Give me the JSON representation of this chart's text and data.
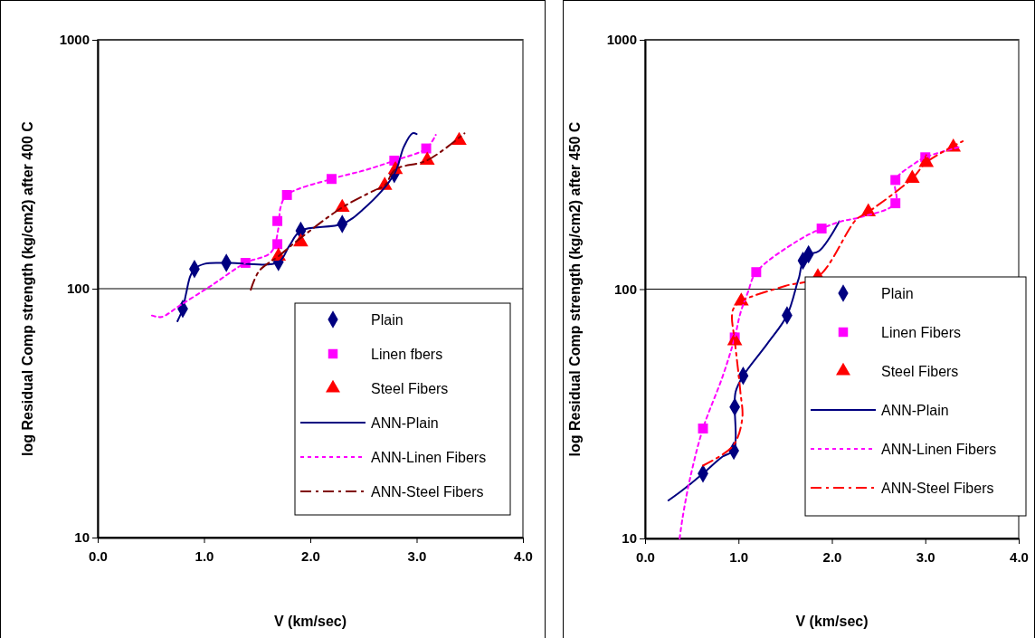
{
  "chart_data": [
    {
      "type": "scatter",
      "xlabel": "V (km/sec)",
      "ylabel": "log Residual Comp strength (kg/cm2) after 400 C",
      "log": true,
      "grid": "y",
      "legend": "bottom right",
      "xlim": [
        0,
        4
      ],
      "xticks": [
        {
          "value": 0,
          "label": "0.0"
        },
        {
          "value": 1,
          "label": "1.0"
        },
        {
          "value": 2,
          "label": "2.0"
        },
        {
          "value": 3,
          "label": "3.0"
        },
        {
          "value": 4,
          "label": "4.0"
        }
      ],
      "ylim": [
        10,
        1000
      ],
      "yticks": [
        10,
        100,
        1000
      ],
      "series": [
        {
          "name": "Plain",
          "type": "scatter",
          "marker": "diamond",
          "color": "#000080",
          "x": [
            0.8,
            0.91,
            1.21,
            1.7,
            1.91,
            2.3,
            2.79
          ],
          "values": [
            83,
            120,
            127,
            128,
            171,
            182,
            289
          ]
        },
        {
          "name": "Linen fbers",
          "type": "scatter",
          "marker": "square",
          "color": "#ff00ff",
          "x": [
            1.39,
            1.69,
            1.69,
            1.78,
            2.2,
            2.79,
            3.09
          ],
          "values": [
            127,
            151,
            187,
            238,
            276,
            327,
            366
          ]
        },
        {
          "name": "Steel Fibers",
          "type": "scatter",
          "marker": "triangle",
          "color": "#ff0000",
          "x": [
            1.7,
            1.91,
            2.3,
            2.7,
            2.8,
            3.1,
            3.4
          ],
          "values": [
            135,
            154,
            212,
            260,
            301,
            328,
            394
          ]
        },
        {
          "name": "ANN-Plain",
          "type": "line",
          "marker": "none",
          "line_style": "solid",
          "color": "#000080",
          "x": [
            0.75,
            0.8,
            0.83,
            0.87,
            0.91,
            1.01,
            1.21,
            1.7,
            1.8,
            1.91,
            2.3,
            2.49,
            2.79,
            2.88,
            2.96,
            3.0
          ],
          "values": [
            74,
            83,
            95,
            112,
            120,
            126,
            127,
            128,
            148,
            171,
            182,
            207,
            289,
            372,
            421,
            418
          ]
        },
        {
          "name": "ANN-Linen Fibers",
          "type": "line",
          "marker": "none",
          "line_style": "dotted",
          "color": "#ff00ff",
          "x": [
            0.51,
            0.6,
            0.78,
            1.07,
            1.39,
            1.63,
            1.7,
            1.72,
            1.78,
            2.2,
            2.51,
            2.79,
            3.09,
            3.18
          ],
          "values": [
            78,
            77,
            86,
            103,
            127,
            140,
            175,
            212,
            238,
            276,
            299,
            327,
            366,
            415
          ]
        },
        {
          "name": "ANN-Steel Fibers",
          "type": "line",
          "marker": "none",
          "line_style": "dashed",
          "color": "#800000",
          "x": [
            1.44,
            1.52,
            1.7,
            1.91,
            2.3,
            2.6,
            2.7,
            2.8,
            3.1,
            3.45
          ],
          "values": [
            99,
            118,
            135,
            160,
            212,
            248,
            260,
            301,
            328,
            421
          ]
        }
      ]
    },
    {
      "type": "scatter",
      "xlabel": "V (km/sec)",
      "ylabel": "log Residual Comp strength (kg/cm2) after 450 C",
      "log": true,
      "grid": "y",
      "legend": "bottom right",
      "xlim": [
        0,
        4
      ],
      "xticks": [
        {
          "value": 0,
          "label": "0.0"
        },
        {
          "value": 1,
          "label": "1.0"
        },
        {
          "value": 2,
          "label": "2.0"
        },
        {
          "value": 3,
          "label": "3.0"
        },
        {
          "value": 4,
          "label": "4.0"
        }
      ],
      "ylim": [
        10,
        1000
      ],
      "yticks": [
        10,
        100,
        1000
      ],
      "series": [
        {
          "name": "Plain",
          "type": "scatter",
          "marker": "diamond",
          "color": "#000080",
          "x": [
            0.62,
            0.95,
            0.96,
            1.05,
            1.52,
            1.69,
            1.75
          ],
          "values": [
            18.2,
            22.5,
            33.7,
            44.9,
            78.5,
            130,
            138
          ]
        },
        {
          "name": "Linen Fibers",
          "type": "scatter",
          "marker": "square",
          "color": "#ff00ff",
          "x": [
            0.62,
            0.96,
            1.19,
            1.89,
            2.68,
            2.68,
            3.0
          ],
          "values": [
            27.6,
            64,
            117,
            175,
            221,
            274,
            338
          ]
        },
        {
          "name": "Steel Fibers",
          "type": "scatter",
          "marker": "triangle",
          "color": "#ff0000",
          "x": [
            0.96,
            1.03,
            1.85,
            2.39,
            2.86,
            3.01,
            3.3
          ],
          "values": [
            62,
            89.5,
            112,
            204,
            278,
            322,
            371
          ]
        },
        {
          "name": "ANN-Plain",
          "type": "line",
          "marker": "none",
          "line_style": "solid",
          "color": "#000080",
          "x": [
            0.25,
            0.39,
            0.62,
            0.83,
            0.95,
            0.97,
            0.96,
            0.97,
            1.05,
            1.31,
            1.52,
            1.63,
            1.65,
            1.69,
            1.75,
            1.86,
            2.08
          ],
          "values": [
            14.2,
            15.5,
            18.2,
            21.3,
            22.5,
            25.2,
            33.7,
            38.8,
            44.9,
            60.5,
            78.5,
            106,
            112,
            130,
            138,
            142,
            187
          ]
        },
        {
          "name": "ANN-Linen Fibers",
          "type": "line",
          "marker": "none",
          "line_style": "dotted",
          "color": "#ff00ff",
          "x": [
            0.37,
            0.4,
            0.48,
            0.62,
            0.83,
            0.96,
            1.02,
            1.1,
            1.19,
            1.63,
            1.89,
            2.1,
            2.32,
            2.68,
            2.68,
            2.88,
            3.0,
            3.36
          ],
          "values": [
            10,
            12,
            17.3,
            27.6,
            44.6,
            64,
            80,
            97,
            117,
            156,
            175,
            187,
            195,
            221,
            274,
            318,
            338,
            371
          ]
        },
        {
          "name": "ANN-Steel Fibers",
          "type": "line",
          "marker": "none",
          "line_style": "dashed",
          "color": "#ff0000",
          "x": [
            0.62,
            0.94,
            1.04,
            1.02,
            0.96,
            0.93,
            0.95,
            1.03,
            1.5,
            1.85,
            2.26,
            2.39,
            2.86,
            3.01,
            3.4
          ],
          "values": [
            19.6,
            23.5,
            30.2,
            38.8,
            62,
            77.8,
            84,
            89.5,
            103,
            112,
            190,
            204,
            278,
            322,
            392
          ]
        }
      ]
    }
  ]
}
